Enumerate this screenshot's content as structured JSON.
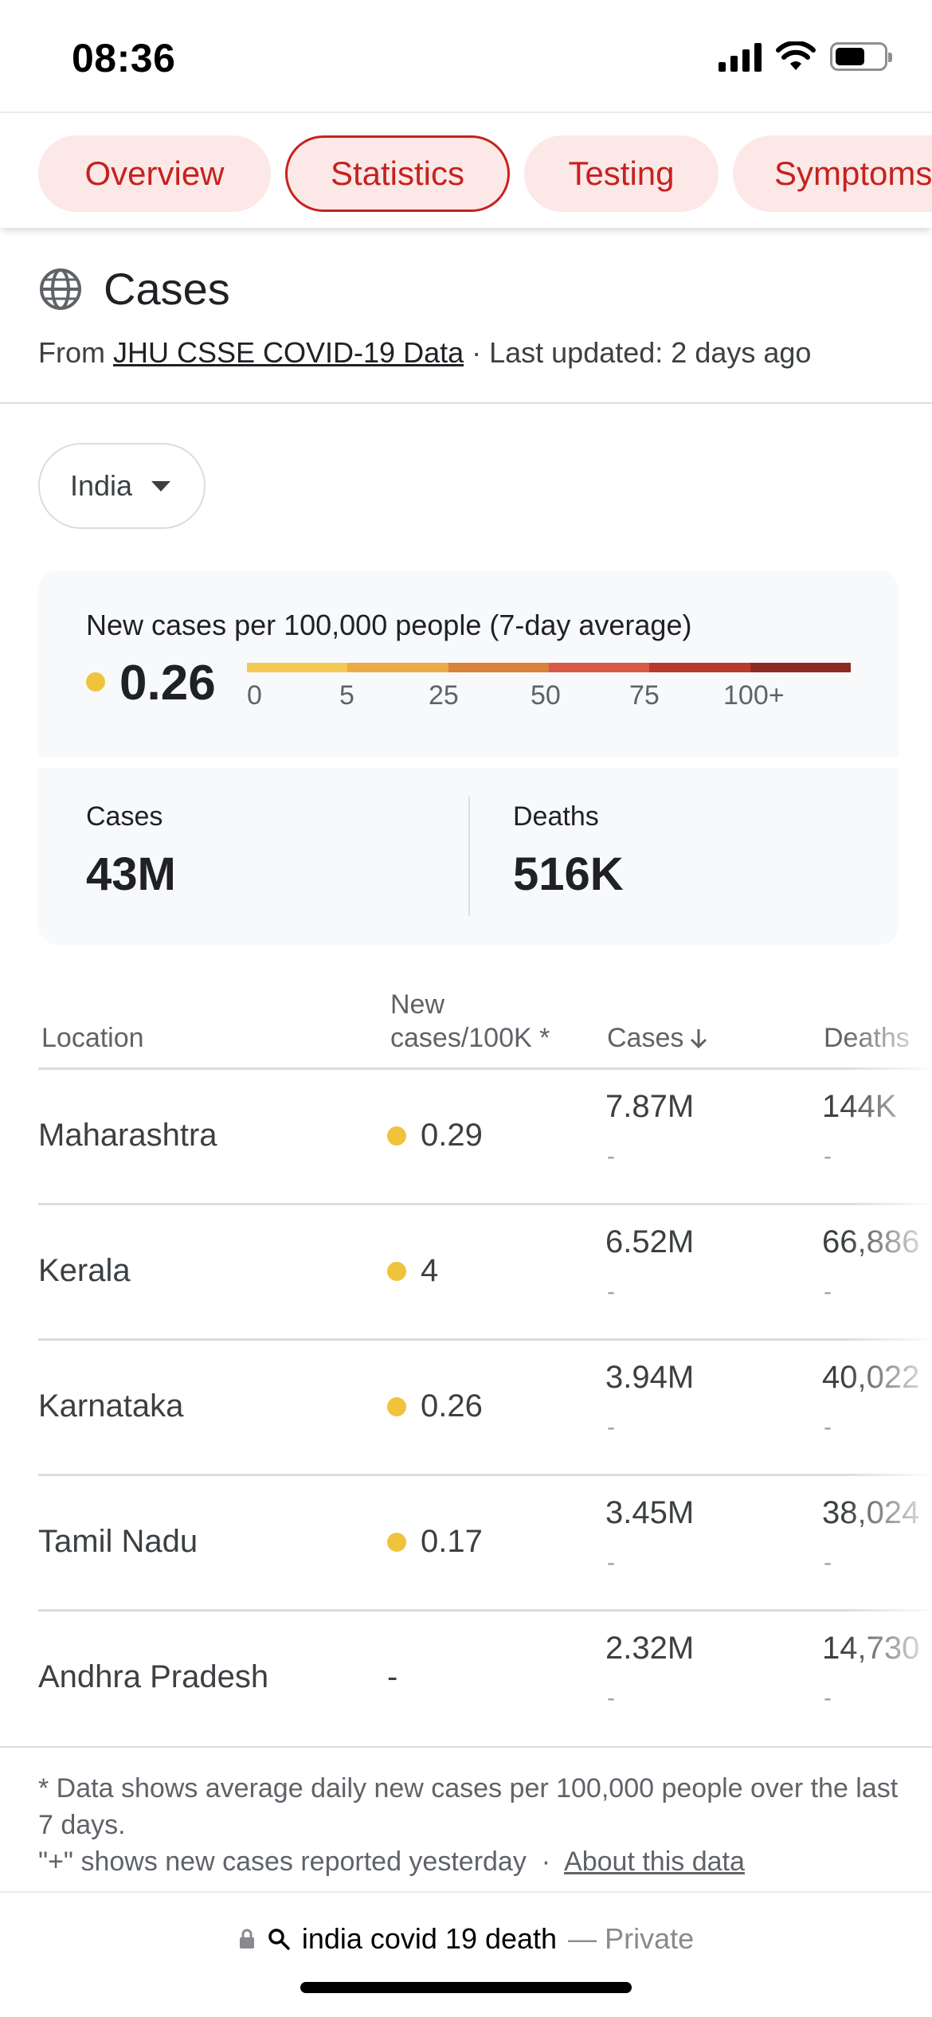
{
  "status_bar": {
    "time": "08:36",
    "icons": [
      "signal-icon",
      "wifi-icon",
      "battery-icon"
    ]
  },
  "tabs": [
    {
      "label": "Overview",
      "active": false
    },
    {
      "label": "Statistics",
      "active": true
    },
    {
      "label": "Testing",
      "active": false
    },
    {
      "label": "Symptoms",
      "active": false
    }
  ],
  "header": {
    "icon": "globe-icon",
    "title": "Cases",
    "source_prefix": "From ",
    "source_link": "JHU CSSE COVID-19 Data",
    "updated": " · Last updated: 2 days ago"
  },
  "location_select": {
    "value": "India"
  },
  "rate": {
    "label": "New cases per 100,000 people (7-day average)",
    "value": "0.26",
    "scale_ticks": [
      "0",
      "5",
      "25",
      "50",
      "75",
      "100+"
    ],
    "scale_colors": [
      "#f3c954",
      "#eaac45",
      "#d8823a",
      "#d85a44",
      "#b83a2f",
      "#8e2a24"
    ],
    "dot_color": "#f0c33c"
  },
  "totals": {
    "cases_label": "Cases",
    "cases_value": "43M",
    "deaths_label": "Deaths",
    "deaths_value": "516K"
  },
  "table": {
    "headers": {
      "location": "Location",
      "new_cases_line1": "New",
      "new_cases_line2": "cases/100K *",
      "cases": "Cases",
      "deaths": "Deaths"
    },
    "rows": [
      {
        "location": "Maharashtra",
        "new_cases": "0.29",
        "dot": true,
        "cases": "7.87M",
        "cases_sub": "-",
        "deaths": "144K",
        "deaths_sub": "-"
      },
      {
        "location": "Kerala",
        "new_cases": "4",
        "dot": true,
        "cases": "6.52M",
        "cases_sub": "-",
        "deaths": "66,886",
        "deaths_sub": "-"
      },
      {
        "location": "Karnataka",
        "new_cases": "0.26",
        "dot": true,
        "cases": "3.94M",
        "cases_sub": "-",
        "deaths": "40,022",
        "deaths_sub": "-"
      },
      {
        "location": "Tamil Nadu",
        "new_cases": "0.17",
        "dot": true,
        "cases": "3.45M",
        "cases_sub": "-",
        "deaths": "38,024",
        "deaths_sub": "-"
      },
      {
        "location": "Andhra Pradesh",
        "new_cases": "-",
        "dot": false,
        "cases": "2.32M",
        "cases_sub": "-",
        "deaths": "14,730",
        "deaths_sub": "-"
      }
    ]
  },
  "footnote": {
    "line1": "* Data shows average daily new cases per 100,000 people over the last 7 days.",
    "line2": "\"+\" shows new cases reported yesterday  ·  ",
    "link": "About this data"
  },
  "address_bar": {
    "query": "india covid 19 death",
    "private_label": "— Private"
  }
}
